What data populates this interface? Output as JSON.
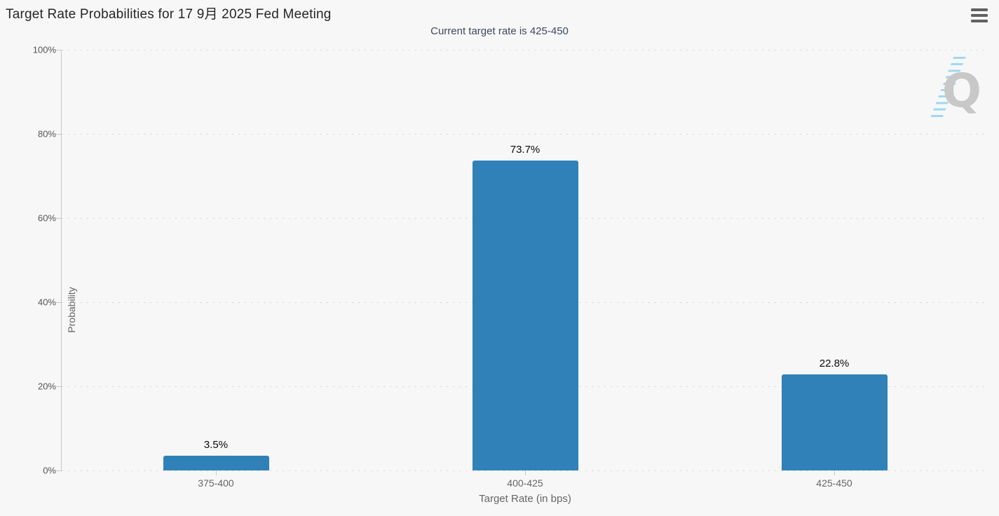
{
  "page": {
    "background": "#f7f7f7"
  },
  "header": {
    "menu_icon": "hamburger-menu"
  },
  "chart_data": {
    "type": "bar",
    "title": "Target Rate Probabilities for 17 9月 2025 Fed Meeting",
    "subtitle": "Current target rate is 425-450",
    "categories": [
      "375-400",
      "400-425",
      "425-450"
    ],
    "values": [
      3.5,
      73.7,
      22.8
    ],
    "value_labels": [
      "3.5%",
      "73.7%",
      "22.8%"
    ],
    "xlabel": "Target Rate (in bps)",
    "ylabel": "Probability",
    "ylim": [
      0,
      100
    ],
    "y_tick_step": 20,
    "y_tick_values": [
      0,
      20,
      40,
      60,
      80,
      100
    ],
    "y_tick_labels": [
      "0%",
      "20%",
      "40%",
      "60%",
      "80%",
      "100%"
    ],
    "grid": "dotted horizontal gridlines",
    "legend_position": "none",
    "bar_color": "#2f81b7",
    "value_label_color": "#0a0a0a",
    "axis_text_color": "#666666",
    "subtitle_color": "#3a4a61"
  },
  "watermark": {
    "letter": "Q",
    "letter_color": "#c8c8c8",
    "stripe_color": "#82ceF0"
  }
}
